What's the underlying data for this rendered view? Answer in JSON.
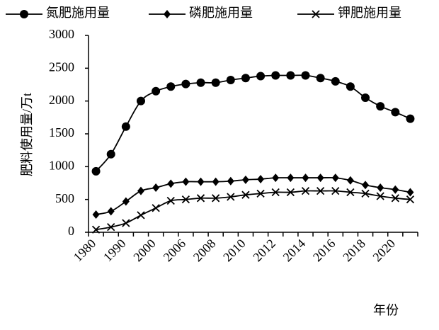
{
  "chart_data": {
    "type": "line",
    "x_label": "年份",
    "y_label": "肥料使用量/万t",
    "categories": [
      "1980",
      null,
      "1990",
      null,
      "2000",
      null,
      "2006",
      null,
      "2008",
      null,
      "2010",
      null,
      "2012",
      null,
      "2014",
      null,
      "2016",
      null,
      "2018",
      null,
      "2020",
      null
    ],
    "series": [
      {
        "name": "氮肥施用量",
        "color": "#000000",
        "marker": "circle",
        "values": [
          930,
          1190,
          1610,
          2000,
          2150,
          2220,
          2260,
          2280,
          2280,
          2320,
          2350,
          2380,
          2390,
          2390,
          2390,
          2350,
          2300,
          2220,
          2050,
          1920,
          1830,
          1730
        ]
      },
      {
        "name": "磷肥施用量",
        "color": "#000000",
        "marker": "diamond",
        "values": [
          270,
          320,
          470,
          630,
          680,
          740,
          770,
          770,
          770,
          780,
          800,
          810,
          830,
          830,
          830,
          830,
          830,
          790,
          720,
          680,
          650,
          610
        ]
      },
      {
        "name": "钾肥施用量",
        "color": "#000000",
        "marker": "x",
        "values": [
          40,
          80,
          140,
          260,
          370,
          480,
          500,
          520,
          520,
          540,
          570,
          590,
          610,
          610,
          630,
          630,
          630,
          610,
          590,
          550,
          520,
          500
        ]
      }
    ],
    "ylim": [
      0,
      3000
    ],
    "yticks": [
      0,
      500,
      1000,
      1500,
      2000,
      2500,
      3000
    ],
    "grid": false,
    "legend": "top"
  }
}
